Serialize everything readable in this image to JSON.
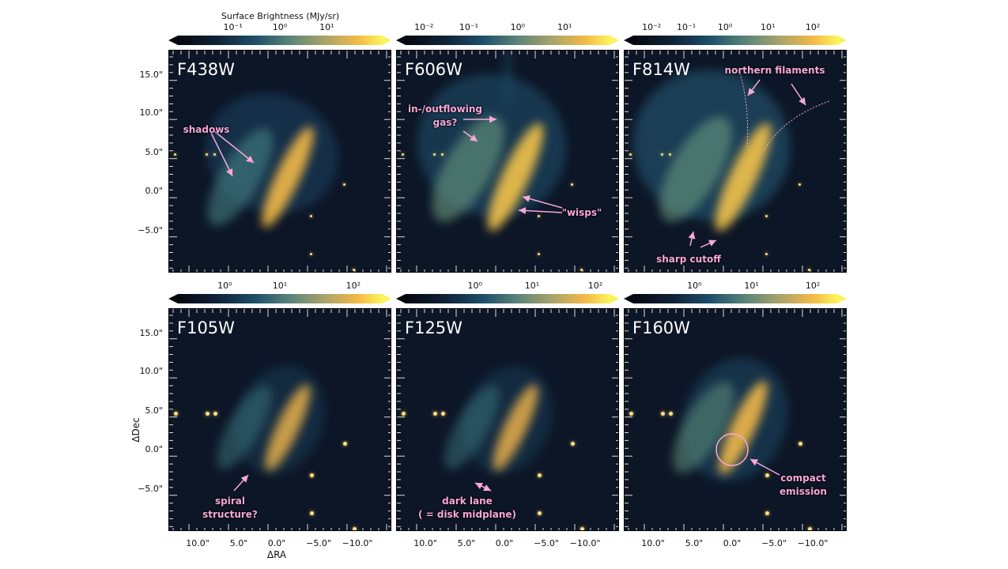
{
  "colorbar_label": "Surface Brightness (MJy/sr)",
  "panels": [
    {
      "filter": "F438W",
      "cbar_ticks": [
        "10⁻¹",
        "10⁰",
        "10¹"
      ],
      "annotations": [
        "shadows"
      ]
    },
    {
      "filter": "F606W",
      "cbar_ticks": [
        "10⁻²",
        "10⁻¹",
        "10⁰",
        "10¹"
      ],
      "annotations": [
        "in-/outflowing\ngas?",
        "\"wisps\""
      ]
    },
    {
      "filter": "F814W",
      "cbar_ticks": [
        "10⁻²",
        "10⁻¹",
        "10⁰",
        "10¹",
        "10²"
      ],
      "annotations": [
        "northern filaments",
        "sharp cutoff"
      ]
    },
    {
      "filter": "F105W",
      "cbar_ticks": [
        "10⁰",
        "10¹",
        "10²"
      ],
      "annotations": [
        "spiral\nstructure?"
      ]
    },
    {
      "filter": "F125W",
      "cbar_ticks": [
        "10⁰",
        "10¹",
        "10²"
      ],
      "annotations": [
        "dark lane\n( = disk midplane)"
      ]
    },
    {
      "filter": "F160W",
      "cbar_ticks": [
        "10⁰",
        "10¹",
        "10²"
      ],
      "annotations": [
        "compact\nemission"
      ]
    }
  ],
  "y_ticks": [
    "15.0\"",
    "10.0\"",
    "5.0\"",
    "0.0\"",
    "−5.0\""
  ],
  "x_ticks": [
    "10.0\"",
    "5.0\"",
    "0.0\"",
    "−5.0\"",
    "−10.0\""
  ],
  "xlabel": "ΔRA",
  "ylabel": "ΔDec",
  "colors": {
    "annotation": "#f7a8d8",
    "background": "#0c1626",
    "colormap": [
      "#05070f",
      "#1e4f6a",
      "#a9a46a",
      "#fbf35a"
    ]
  }
}
